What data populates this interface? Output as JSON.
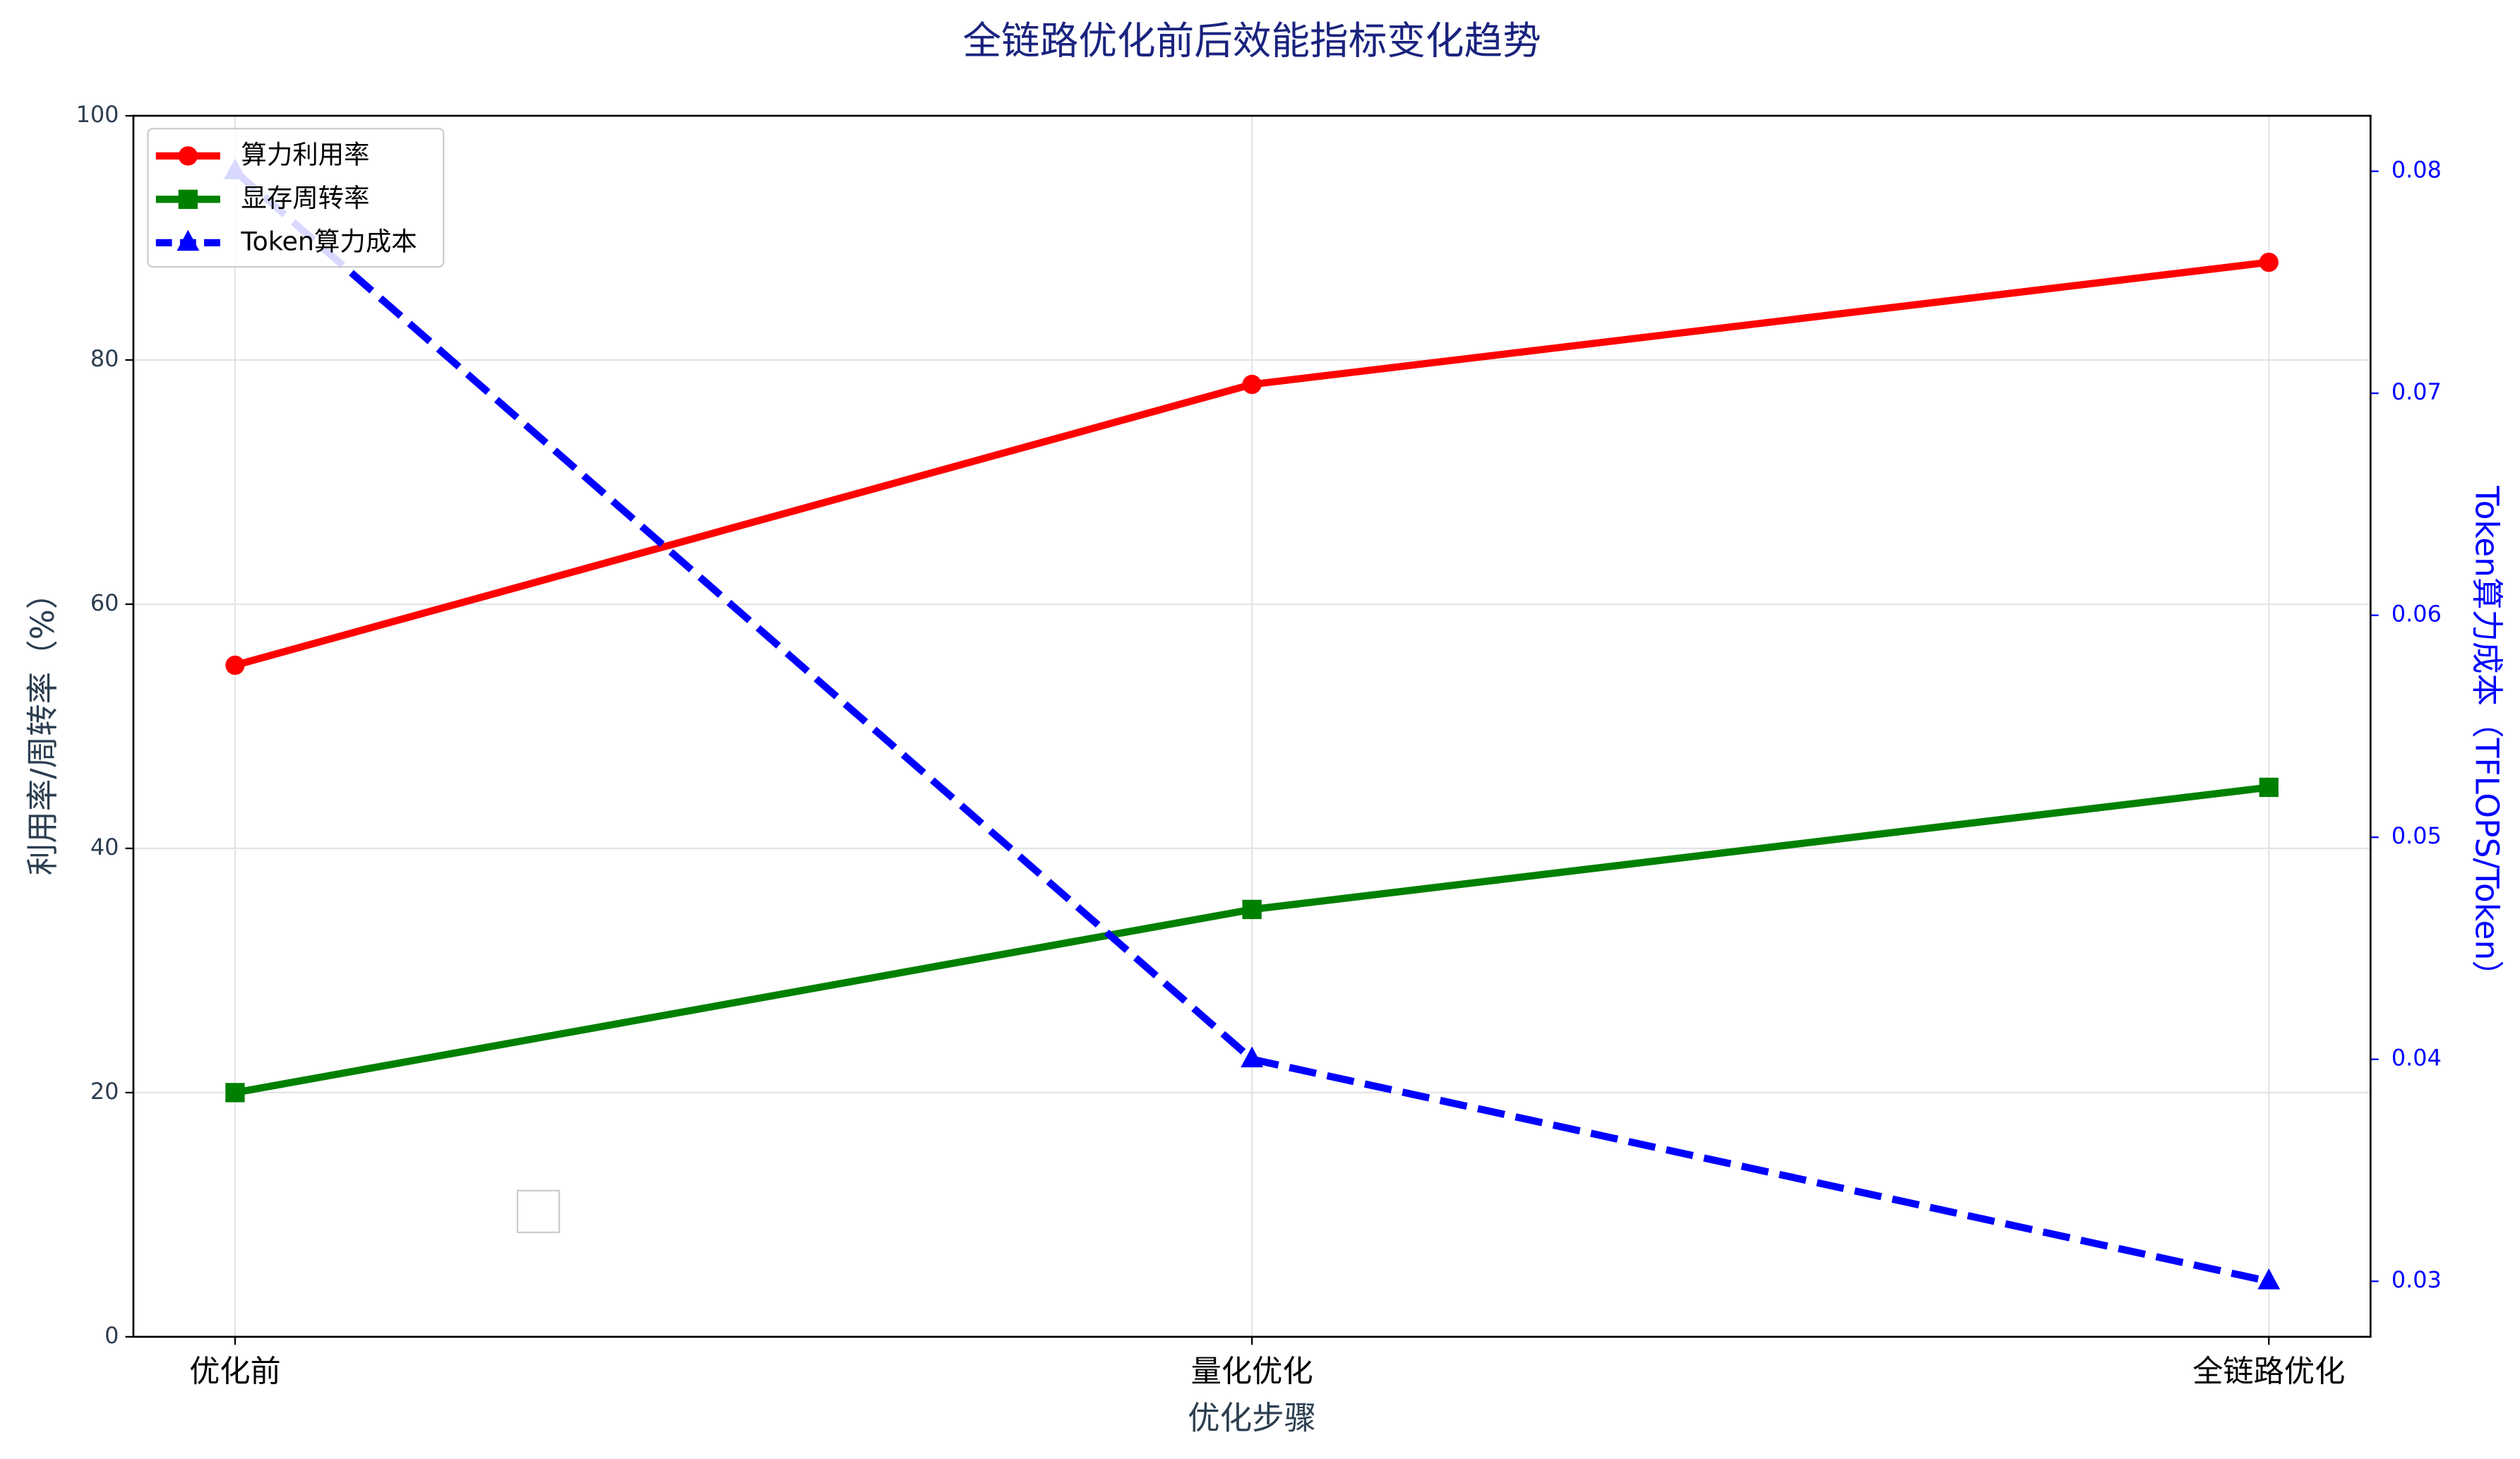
{
  "chart_data": {
    "type": "line",
    "title": "全链路优化前后效能指标变化趋势",
    "x_label": "优化步骤",
    "y_label": "利用率/周转率（%）",
    "y2_label": "Token算力成本（TFLOPS/Token）",
    "categories": [
      "优化前",
      "量化优化",
      "全链路优化"
    ],
    "ylim": [
      0,
      100
    ],
    "yticks": [
      0,
      20,
      40,
      60,
      80,
      100
    ],
    "y2lim": [
      0.0275,
      0.0825
    ],
    "y2ticks": [
      0.03,
      0.04,
      0.05,
      0.06,
      0.07,
      0.08
    ],
    "grid": true,
    "legend": "upper-left",
    "series": [
      {
        "name": "算力利用率",
        "color": "#ff0000",
        "marker": "circle",
        "linestyle": "solid",
        "values": [
          55,
          78,
          88
        ]
      },
      {
        "name": "显存周转率",
        "color": "#008000",
        "marker": "square",
        "linestyle": "solid",
        "values": [
          20,
          35,
          45
        ]
      },
      {
        "name": "Token算力成本",
        "color": "#0000ff",
        "marker": "triangle",
        "linestyle": "dashed",
        "axis": "y2",
        "values": [
          0.08,
          0.04,
          0.03
        ]
      }
    ]
  }
}
